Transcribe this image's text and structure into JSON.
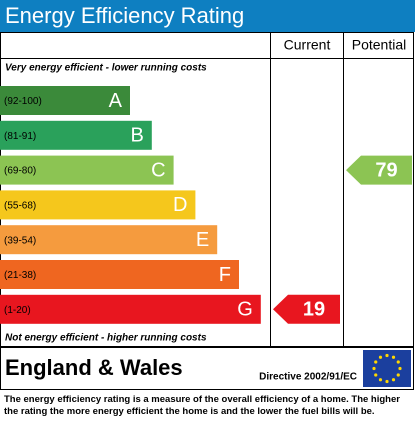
{
  "header": {
    "title": "Energy Efficiency Rating"
  },
  "columns": {
    "current": "Current",
    "potential": "Potential"
  },
  "top_note": "Very energy efficient - lower running costs",
  "bottom_note": "Not energy efficient - higher running costs",
  "bands": [
    {
      "range": "(92-100)",
      "letter": "A",
      "color": "#3b8a3a"
    },
    {
      "range": "(81-91)",
      "letter": "B",
      "color": "#2aa15b"
    },
    {
      "range": "(69-80)",
      "letter": "C",
      "color": "#8cc453"
    },
    {
      "range": "(55-68)",
      "letter": "D",
      "color": "#f5c71c"
    },
    {
      "range": "(39-54)",
      "letter": "E",
      "color": "#f59b3e"
    },
    {
      "range": "(21-38)",
      "letter": "F",
      "color": "#ef6620"
    },
    {
      "range": "(1-20)",
      "letter": "G",
      "color": "#e8161f"
    }
  ],
  "current": 19,
  "potential": 79,
  "footer": {
    "region": "England & Wales",
    "directive": "Directive 2002/91/EC"
  },
  "description": "The energy efficiency rating is a measure of the overall efficiency of a home. The higher the rating the more energy efficient the home is and the lower the fuel bills will be."
}
